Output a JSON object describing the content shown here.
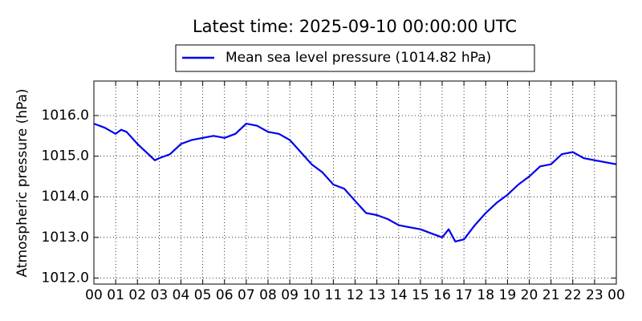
{
  "chart_data": {
    "type": "line",
    "title": "Latest time: 2025-09-10 00:00:00 UTC",
    "y_label": "Atmospheric pressure (hPa)",
    "x": [
      0,
      0.5,
      1.0,
      1.25,
      1.5,
      2.0,
      2.5,
      2.8,
      3.0,
      3.5,
      4.0,
      4.5,
      5.0,
      5.5,
      6.0,
      6.5,
      7.0,
      7.5,
      8.0,
      8.5,
      9.0,
      9.5,
      10.0,
      10.5,
      11.0,
      11.5,
      12.0,
      12.5,
      13.0,
      13.5,
      14.0,
      14.5,
      15.0,
      15.5,
      16.0,
      16.3,
      16.6,
      17.0,
      17.5,
      18.0,
      18.5,
      19.0,
      19.5,
      20.0,
      20.5,
      21.0,
      21.5,
      22.0,
      22.5,
      23.0,
      23.5,
      24.0
    ],
    "series": [
      {
        "name": "Mean sea level pressure (1014.82 hPa)",
        "color": "#0000ee",
        "values": [
          1015.8,
          1015.7,
          1015.55,
          1015.65,
          1015.6,
          1015.3,
          1015.05,
          1014.9,
          1014.95,
          1015.05,
          1015.3,
          1015.4,
          1015.45,
          1015.5,
          1015.45,
          1015.55,
          1015.8,
          1015.75,
          1015.6,
          1015.55,
          1015.4,
          1015.1,
          1014.8,
          1014.6,
          1014.3,
          1014.2,
          1013.9,
          1013.6,
          1013.55,
          1013.45,
          1013.3,
          1013.25,
          1013.2,
          1013.1,
          1013.0,
          1013.2,
          1012.9,
          1012.95,
          1013.3,
          1013.6,
          1013.85,
          1014.05,
          1014.3,
          1014.5,
          1014.75,
          1014.8,
          1015.05,
          1015.1,
          1014.95,
          1014.9,
          1014.85,
          1014.8
        ]
      }
    ],
    "xlim": [
      0,
      24
    ],
    "xticks": [
      {
        "value": 0,
        "label": "00"
      },
      {
        "value": 1,
        "label": "01"
      },
      {
        "value": 2,
        "label": "02"
      },
      {
        "value": 3,
        "label": "03"
      },
      {
        "value": 4,
        "label": "04"
      },
      {
        "value": 5,
        "label": "05"
      },
      {
        "value": 6,
        "label": "06"
      },
      {
        "value": 7,
        "label": "07"
      },
      {
        "value": 8,
        "label": "08"
      },
      {
        "value": 9,
        "label": "09"
      },
      {
        "value": 10,
        "label": "10"
      },
      {
        "value": 11,
        "label": "11"
      },
      {
        "value": 12,
        "label": "12"
      },
      {
        "value": 13,
        "label": "13"
      },
      {
        "value": 14,
        "label": "14"
      },
      {
        "value": 15,
        "label": "15"
      },
      {
        "value": 16,
        "label": "16"
      },
      {
        "value": 17,
        "label": "17"
      },
      {
        "value": 18,
        "label": "18"
      },
      {
        "value": 19,
        "label": "19"
      },
      {
        "value": 20,
        "label": "20"
      },
      {
        "value": 21,
        "label": "21"
      },
      {
        "value": 22,
        "label": "22"
      },
      {
        "value": 23,
        "label": "23"
      },
      {
        "value": 24,
        "label": "00"
      }
    ],
    "ylim": [
      1011.85,
      1016.85
    ],
    "yticks": [
      {
        "value": 1012,
        "label": "1012.0"
      },
      {
        "value": 1013,
        "label": "1013.0"
      },
      {
        "value": 1014,
        "label": "1014.0"
      },
      {
        "value": 1015,
        "label": "1015.0"
      },
      {
        "value": 1016,
        "label": "1016.0"
      }
    ],
    "grid": true,
    "legend": "top"
  }
}
